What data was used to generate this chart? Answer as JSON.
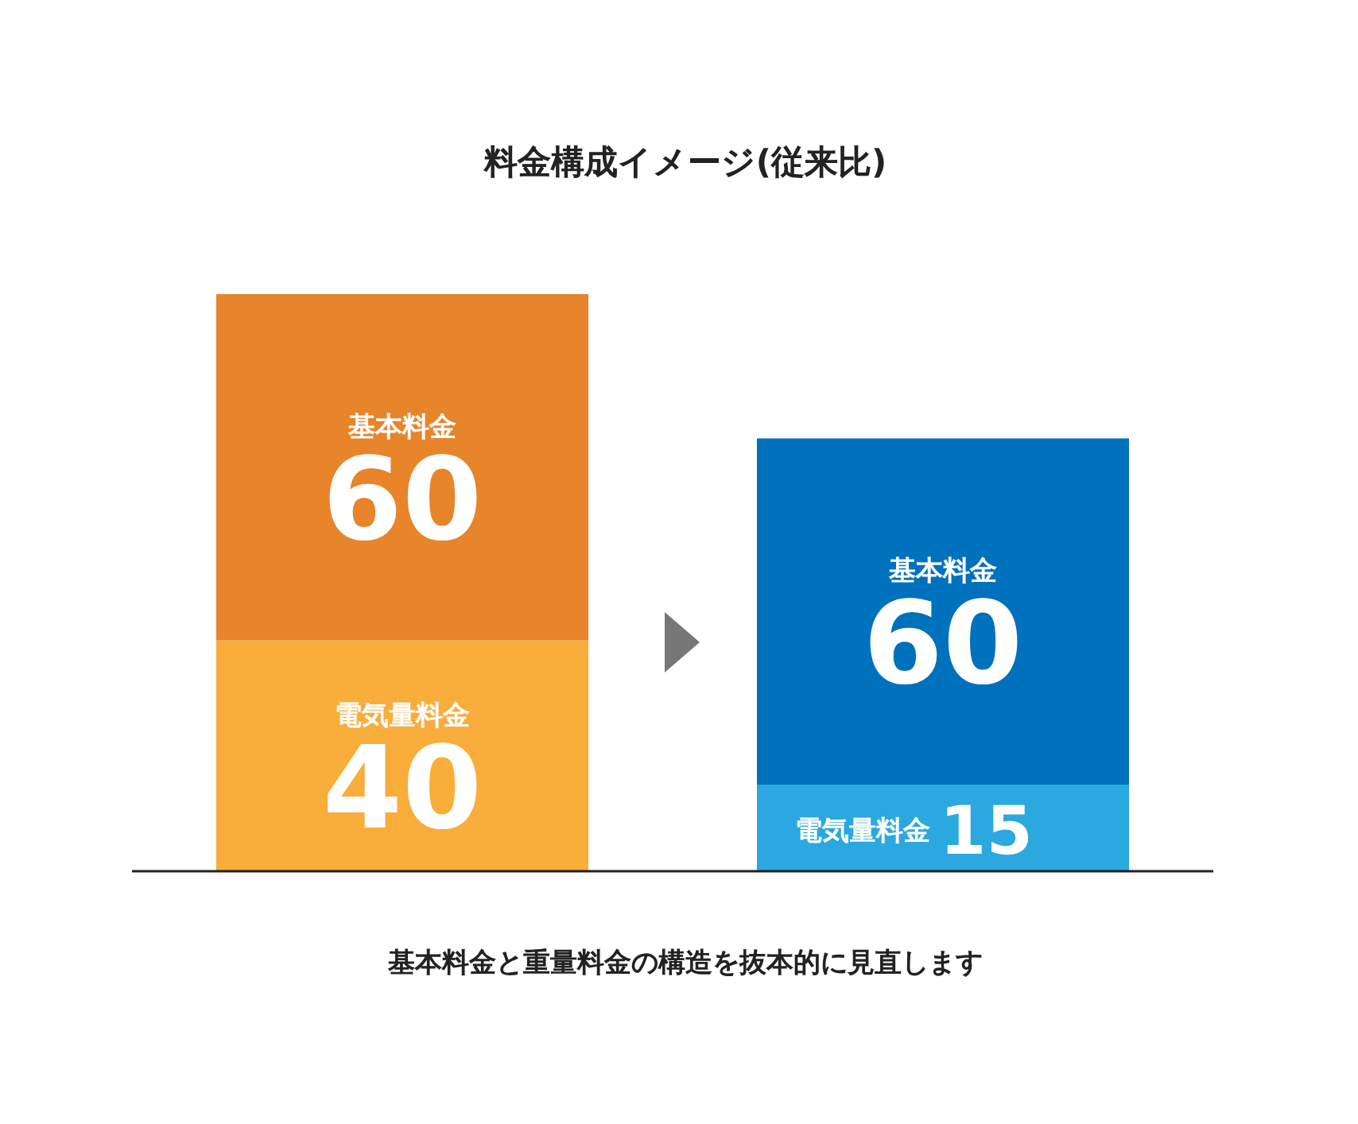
{
  "chart_data": {
    "type": "bar",
    "title": "料金構成イメージ(従来比)",
    "categories": [
      null,
      null
    ],
    "stacked": true,
    "ylim": [
      0,
      100
    ],
    "grid": false,
    "data_labels": true,
    "series": [
      {
        "name": "電気量料金",
        "colors": [
          "#f9ad3a",
          "#2ba8e0"
        ],
        "values": [
          40,
          15
        ]
      },
      {
        "name": "基本料金",
        "colors": [
          "#e8842a",
          "#0071bc"
        ],
        "values": [
          60,
          60
        ]
      }
    ],
    "annotations": [
      "基本料金と重量料金の構造を抜本的に見直します"
    ]
  }
}
